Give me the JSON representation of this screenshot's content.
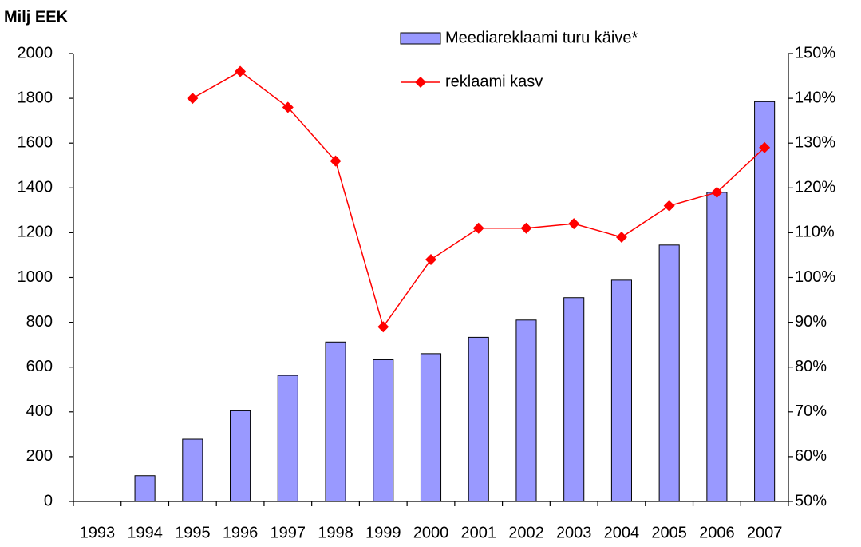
{
  "chart_data": {
    "type": "bar_line",
    "title": "Milj EEK",
    "categories": [
      "1993",
      "1994",
      "1995",
      "1996",
      "1997",
      "1998",
      "1999",
      "2000",
      "2001",
      "2002",
      "2003",
      "2004",
      "2005",
      "2006",
      "2007"
    ],
    "series": [
      {
        "name": "Meediareklaami turu käive*",
        "type": "bar",
        "color": "#9999ff",
        "values": [
          null,
          115,
          278,
          405,
          563,
          712,
          633,
          660,
          733,
          810,
          910,
          988,
          1145,
          1380,
          1785
        ]
      },
      {
        "name": "reklaami kasv",
        "type": "line",
        "color": "#ff0000",
        "axis": "y2",
        "values": [
          null,
          null,
          140,
          146,
          138,
          126,
          89,
          104,
          111,
          111,
          112,
          109,
          116,
          119,
          129
        ]
      }
    ],
    "ylim": [
      0,
      2000
    ],
    "yticks": [
      0,
      200,
      400,
      600,
      800,
      1000,
      1200,
      1400,
      1600,
      1800,
      2000
    ],
    "y2lim": [
      50,
      150
    ],
    "y2ticks": [
      {
        "value": 50,
        "label": "50%"
      },
      {
        "value": 60,
        "label": "60%"
      },
      {
        "value": 70,
        "label": "70%"
      },
      {
        "value": 80,
        "label": "80%"
      },
      {
        "value": 90,
        "label": "90%"
      },
      {
        "value": 100,
        "label": "100%"
      },
      {
        "value": 110,
        "label": "110%"
      },
      {
        "value": 120,
        "label": "120%"
      },
      {
        "value": 130,
        "label": "130%"
      },
      {
        "value": 140,
        "label": "140%"
      },
      {
        "value": 150,
        "label": "150%"
      }
    ],
    "grid": false
  }
}
